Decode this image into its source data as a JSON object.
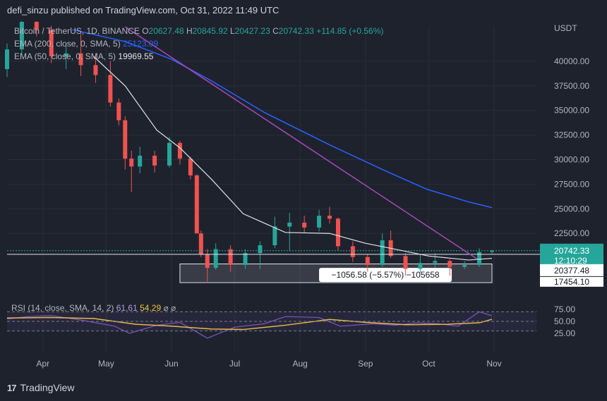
{
  "header": {
    "publisher": "defi_sinzu published on TradingView.com, Oct 31, 2022 11:49 UTC"
  },
  "brand": "TradingView",
  "legend": {
    "symbol": "Bitcoin / TetherUS, 1D, BINANCE",
    "open_label": "O",
    "open": "20627.48",
    "high_label": "H",
    "high": "20845.92",
    "low_label": "L",
    "low": "20427.23",
    "close_label": "C",
    "close": "20742.33",
    "change": "+114.85 (+0.56%)",
    "ema200_label": "EMA (200, close, 0, SMA, 5)",
    "ema200_value": "25123.09",
    "ema50_label": "EMA (50, close, 0, SMA, 5)",
    "ema50_value": "19969.55",
    "rsi_label": "RSI (14, close, SMA, 14, 2)",
    "rsi_value": "61.61",
    "rsi_sma_value": "54.29"
  },
  "price_axis": {
    "currency": "USDT",
    "labels": [
      "40000.00",
      "37500.00",
      "35000.00",
      "32500.00",
      "30000.00",
      "27500.00",
      "25000.00",
      "22500.00"
    ],
    "last_price": "20742.33",
    "countdown": "12:10:29",
    "level_label": "20377.48",
    "low_label": "17454.10"
  },
  "rsi_axis": {
    "labels": [
      "75.00",
      "50.00",
      "25.00"
    ]
  },
  "time_axis": {
    "labels": [
      "Apr",
      "May",
      "Jun",
      "Jul",
      "Aug",
      "Sep",
      "Oct",
      "Nov"
    ]
  },
  "measure": {
    "text": "−1056.58 (−5.57%) −105658"
  },
  "colors": {
    "up": "#26a69a",
    "down": "#ef5350",
    "ema200": "#2962ff",
    "ema50": "#e0e3eb",
    "trend": "#ab47bc",
    "rsi": "#7e57c2",
    "rsi_sma": "#f0c53d"
  },
  "chart_data": {
    "type": "candlestick",
    "title": "Bitcoin / TetherUS, 1D, BINANCE",
    "x_range": [
      "2022-03-15",
      "2022-11-01"
    ],
    "y_range": [
      16500,
      43500
    ],
    "series": [
      {
        "name": "EMA (200, close, 0, SMA, 5)",
        "x": [
          "2022-04-15",
          "2022-05-10",
          "2022-06-01",
          "2022-06-20",
          "2022-07-15",
          "2022-08-15",
          "2022-09-10",
          "2022-09-30",
          "2022-10-20",
          "2022-10-31"
        ],
        "y": [
          43200,
          42000,
          40200,
          38000,
          34800,
          31500,
          28900,
          27000,
          25700,
          25123
        ]
      },
      {
        "name": "EMA (50, close, 0, SMA, 5)",
        "x": [
          "2022-04-25",
          "2022-05-10",
          "2022-05-25",
          "2022-06-05",
          "2022-06-20",
          "2022-07-05",
          "2022-07-25",
          "2022-08-15",
          "2022-09-01",
          "2022-09-15",
          "2022-10-01",
          "2022-10-20",
          "2022-10-31"
        ],
        "y": [
          40500,
          37500,
          33000,
          31200,
          28000,
          24500,
          22600,
          22500,
          21500,
          20900,
          20200,
          19800,
          19970
        ]
      },
      {
        "name": "trend line",
        "x": [
          "2022-05-10",
          "2022-10-24"
        ],
        "y": [
          43500,
          19900
        ]
      },
      {
        "name": "RSI (14, close, SMA, 14, 2)",
        "x": [
          "2022-03-15",
          "2022-03-25",
          "2022-04-05",
          "2022-04-20",
          "2022-05-05",
          "2022-05-12",
          "2022-05-25",
          "2022-06-05",
          "2022-06-18",
          "2022-07-01",
          "2022-07-15",
          "2022-07-25",
          "2022-08-10",
          "2022-08-20",
          "2022-09-05",
          "2022-09-15",
          "2022-09-25",
          "2022-10-05",
          "2022-10-15",
          "2022-10-25",
          "2022-10-31"
        ],
        "y": [
          55,
          60,
          62,
          52,
          40,
          25,
          42,
          48,
          15,
          38,
          45,
          60,
          58,
          40,
          45,
          42,
          47,
          45,
          40,
          70,
          61.61
        ]
      },
      {
        "name": "RSI SMA",
        "x": [
          "2022-03-15",
          "2022-04-05",
          "2022-04-25",
          "2022-05-15",
          "2022-06-01",
          "2022-06-20",
          "2022-07-05",
          "2022-07-25",
          "2022-08-15",
          "2022-09-01",
          "2022-09-20",
          "2022-10-10",
          "2022-10-25",
          "2022-10-31"
        ],
        "y": [
          57,
          58,
          56,
          44,
          40,
          34,
          33,
          42,
          54,
          48,
          43,
          44,
          47,
          54.29
        ]
      }
    ],
    "candles": [
      {
        "d": "2022-03-15",
        "o": 39200,
        "h": 41800,
        "l": 38400,
        "c": 41200
      },
      {
        "d": "2022-03-22",
        "o": 41200,
        "h": 44500,
        "l": 40700,
        "c": 44000
      },
      {
        "d": "2022-03-29",
        "o": 44000,
        "h": 45500,
        "l": 42500,
        "c": 43200
      },
      {
        "d": "2022-04-05",
        "o": 43200,
        "h": 43600,
        "l": 39800,
        "c": 40500
      },
      {
        "d": "2022-04-12",
        "o": 40500,
        "h": 41800,
        "l": 39200,
        "c": 40800
      },
      {
        "d": "2022-04-19",
        "o": 40800,
        "h": 42800,
        "l": 38500,
        "c": 39600
      },
      {
        "d": "2022-04-26",
        "o": 39600,
        "h": 40800,
        "l": 37800,
        "c": 38600
      },
      {
        "d": "2022-05-03",
        "o": 38600,
        "h": 40000,
        "l": 35400,
        "c": 35800
      },
      {
        "d": "2022-05-07",
        "o": 35800,
        "h": 36200,
        "l": 33500,
        "c": 34000
      },
      {
        "d": "2022-05-10",
        "o": 34000,
        "h": 34400,
        "l": 29000,
        "c": 30100
      },
      {
        "d": "2022-05-13",
        "o": 30100,
        "h": 30900,
        "l": 26700,
        "c": 29300
      },
      {
        "d": "2022-05-17",
        "o": 29300,
        "h": 31300,
        "l": 28600,
        "c": 30400
      },
      {
        "d": "2022-05-24",
        "o": 30400,
        "h": 30900,
        "l": 28700,
        "c": 29400
      },
      {
        "d": "2022-05-31",
        "o": 29400,
        "h": 32300,
        "l": 29200,
        "c": 31700
      },
      {
        "d": "2022-06-05",
        "o": 31700,
        "h": 31900,
        "l": 29500,
        "c": 30100
      },
      {
        "d": "2022-06-10",
        "o": 30100,
        "h": 30300,
        "l": 28000,
        "c": 28400
      },
      {
        "d": "2022-06-13",
        "o": 28400,
        "h": 28500,
        "l": 22600,
        "c": 22500
      },
      {
        "d": "2022-06-15",
        "o": 22500,
        "h": 22800,
        "l": 20100,
        "c": 20400
      },
      {
        "d": "2022-06-18",
        "o": 20400,
        "h": 20900,
        "l": 17600,
        "c": 19000
      },
      {
        "d": "2022-06-22",
        "o": 19000,
        "h": 21500,
        "l": 18800,
        "c": 20900
      },
      {
        "d": "2022-06-29",
        "o": 20900,
        "h": 21300,
        "l": 18600,
        "c": 19300
      },
      {
        "d": "2022-07-06",
        "o": 19300,
        "h": 20900,
        "l": 18900,
        "c": 20500
      },
      {
        "d": "2022-07-13",
        "o": 20500,
        "h": 21700,
        "l": 18900,
        "c": 21300
      },
      {
        "d": "2022-07-20",
        "o": 21300,
        "h": 24200,
        "l": 21000,
        "c": 23200
      },
      {
        "d": "2022-07-27",
        "o": 23200,
        "h": 24600,
        "l": 20700,
        "c": 23600
      },
      {
        "d": "2022-08-03",
        "o": 23600,
        "h": 24300,
        "l": 22600,
        "c": 23100
      },
      {
        "d": "2022-08-10",
        "o": 23100,
        "h": 24900,
        "l": 22700,
        "c": 24300
      },
      {
        "d": "2022-08-15",
        "o": 24300,
        "h": 25200,
        "l": 23500,
        "c": 24000
      },
      {
        "d": "2022-08-19",
        "o": 24000,
        "h": 24100,
        "l": 20800,
        "c": 21200
      },
      {
        "d": "2022-08-26",
        "o": 21200,
        "h": 21700,
        "l": 19600,
        "c": 20100
      },
      {
        "d": "2022-09-02",
        "o": 20100,
        "h": 20400,
        "l": 18600,
        "c": 19300
      },
      {
        "d": "2022-09-09",
        "o": 19300,
        "h": 22500,
        "l": 19100,
        "c": 21800
      },
      {
        "d": "2022-09-13",
        "o": 21800,
        "h": 22800,
        "l": 20000,
        "c": 20200
      },
      {
        "d": "2022-09-20",
        "o": 20200,
        "h": 20500,
        "l": 18200,
        "c": 18900
      },
      {
        "d": "2022-09-27",
        "o": 18900,
        "h": 20400,
        "l": 18500,
        "c": 19500
      },
      {
        "d": "2022-10-04",
        "o": 19500,
        "h": 20500,
        "l": 19000,
        "c": 19700
      },
      {
        "d": "2022-10-11",
        "o": 19700,
        "h": 19900,
        "l": 18200,
        "c": 19100
      },
      {
        "d": "2022-10-18",
        "o": 19100,
        "h": 19700,
        "l": 18900,
        "c": 19300
      },
      {
        "d": "2022-10-25",
        "o": 19300,
        "h": 21000,
        "l": 19100,
        "c": 20600
      },
      {
        "d": "2022-10-31",
        "o": 20627.48,
        "h": 20845.92,
        "l": 20427.23,
        "c": 20742.33
      }
    ],
    "rsi_ylim": [
      0,
      100
    ]
  }
}
